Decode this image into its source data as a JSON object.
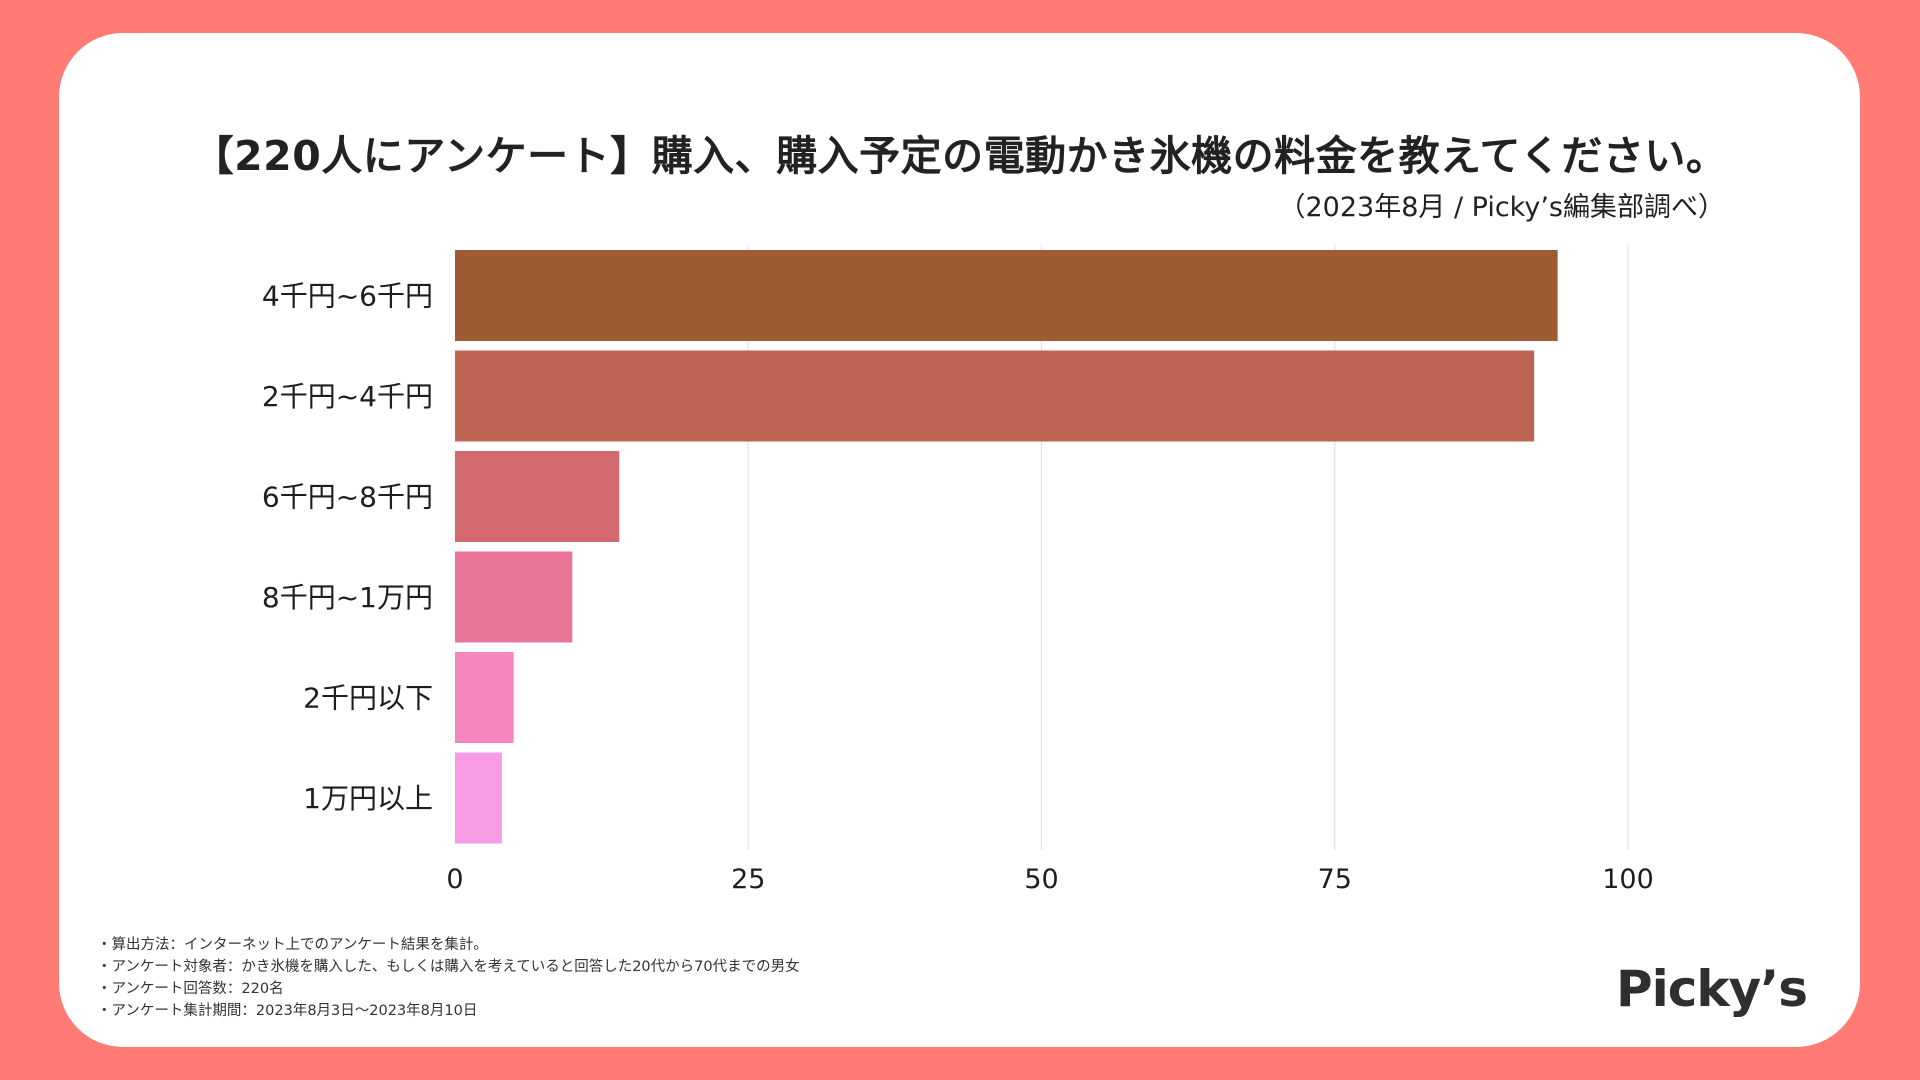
{
  "colors": {
    "frame": "#ff7b73",
    "card": "#ffffff",
    "bars": [
      "#9e5b34",
      "#bd6452",
      "#d4686f",
      "#e97497",
      "#f585bd",
      "#f79be6"
    ],
    "grid": "#e3e3e3"
  },
  "chart_data": {
    "type": "bar",
    "orientation": "horizontal",
    "title": "【220人にアンケート】購入、購入予定の電動かき氷機の料金を教えてください。",
    "subtitle": "（2023年8月 / Picky’s編集部調べ）",
    "categories": [
      "4千円~6千円",
      "2千円~4千円",
      "6千円~8千円",
      "8千円~1万円",
      "2千円以下",
      "1万円以上"
    ],
    "values": [
      94,
      92,
      14,
      10,
      5,
      4
    ],
    "xlim": [
      0,
      100
    ],
    "xticks": [
      "0",
      "25",
      "50",
      "75",
      "100"
    ],
    "xlabel": "",
    "ylabel": "",
    "grid": true
  },
  "notes": [
    "・算出方法：インターネット上でのアンケート結果を集計。",
    "・アンケート対象者：かき氷機を購入した、もしくは購入を考えていると回答した20代から70代までの男女",
    "・アンケート回答数：220名",
    "・アンケート集計期間：2023年8月3日〜2023年8月10日"
  ],
  "logo": "Picky’s"
}
